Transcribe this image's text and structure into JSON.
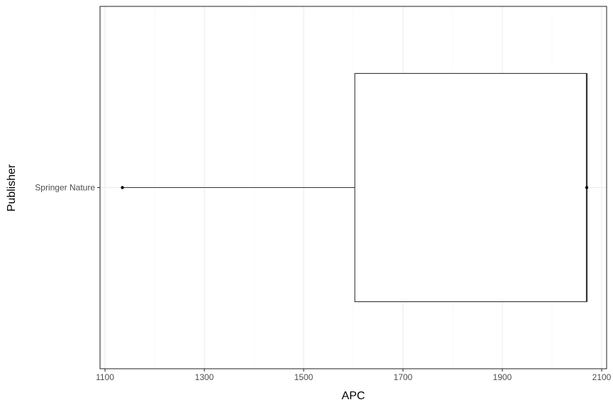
{
  "chart_data": {
    "type": "boxplot",
    "orientation": "horizontal",
    "title": "",
    "xlabel": "APC",
    "ylabel": "Publisher",
    "xlim": [
      1090,
      2110
    ],
    "x_ticks": [
      1100,
      1300,
      1500,
      1700,
      1900,
      2100
    ],
    "x_tick_labels": [
      "1100",
      "1300",
      "1500",
      "1700",
      "1900",
      "2100"
    ],
    "categories": [
      "Springer Nature"
    ],
    "boxes": [
      {
        "category": "Springer Nature",
        "min": 1135,
        "q1": 1603,
        "median": 2070,
        "q3": 2070,
        "max": 2070,
        "outliers": [
          1135,
          2070
        ]
      }
    ],
    "grid": true,
    "theme": "bw",
    "colors": {
      "box_outline": "#333333",
      "box_fill": "#ffffff",
      "points": "#000000",
      "grid": "#ebebeb"
    }
  }
}
